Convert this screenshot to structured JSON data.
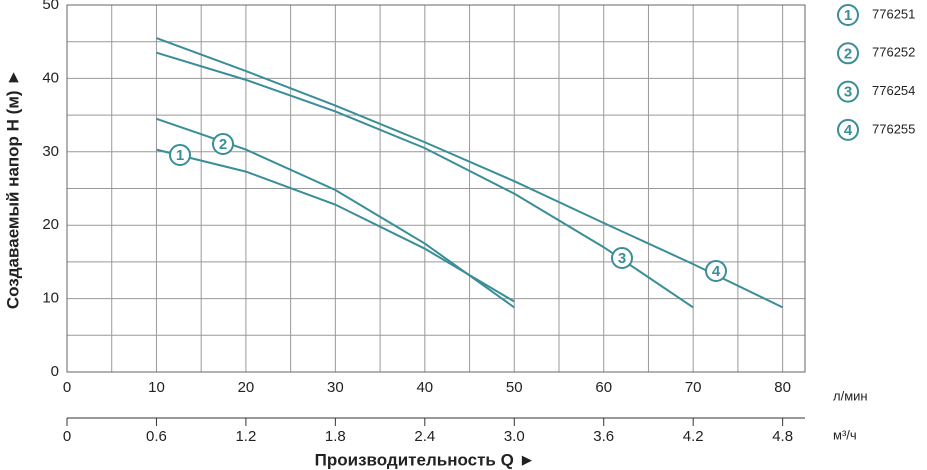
{
  "chart_data": {
    "type": "line",
    "y_label": "Создаваемый напор H (м) ►",
    "x_label": "Производительность Q ►",
    "x_unit": "л/мин",
    "x2_unit": "м³/ч",
    "xlim": [
      0,
      82.5
    ],
    "xticks": [
      0,
      10,
      20,
      30,
      40,
      50,
      60,
      70,
      80
    ],
    "xminorticks": [
      5,
      15,
      25,
      35,
      45,
      55,
      65,
      75
    ],
    "x2lim": [
      0,
      4.95
    ],
    "x2ticks": [
      0,
      0.6,
      1.2,
      1.8,
      2.4,
      {
        "value": 3,
        "label": "3.0"
      },
      3.6,
      4.2,
      4.8
    ],
    "ylim": [
      0,
      50
    ],
    "yticks": [
      0,
      10,
      20,
      30,
      40,
      50
    ],
    "yminorticks": [
      5,
      15,
      25,
      35,
      45
    ],
    "grid": true,
    "series": [
      {
        "name": "776251",
        "marker": "1",
        "color": "#3a8e98",
        "x": [
          10,
          20,
          30,
          40,
          50
        ],
        "values": [
          30.3,
          27.3,
          22.8,
          16.8,
          9.6
        ]
      },
      {
        "name": "776252",
        "marker": "2",
        "color": "#3a8e98",
        "x": [
          10,
          20,
          30,
          40,
          50
        ],
        "values": [
          34.5,
          30.3,
          24.8,
          17.5,
          8.8
        ]
      },
      {
        "name": "776254",
        "marker": "3",
        "color": "#3a8e98",
        "x": [
          10,
          20,
          30,
          40,
          50,
          60,
          70
        ],
        "values": [
          43.5,
          39.8,
          35.5,
          30.5,
          24.3,
          17,
          8.8
        ]
      },
      {
        "name": "776255",
        "marker": "4",
        "color": "#3a8e98",
        "x": [
          10,
          20,
          30,
          40,
          50,
          60,
          70,
          80
        ],
        "values": [
          45.5,
          41,
          36.3,
          31.3,
          26,
          20.3,
          14.7,
          8.8
        ]
      }
    ]
  }
}
